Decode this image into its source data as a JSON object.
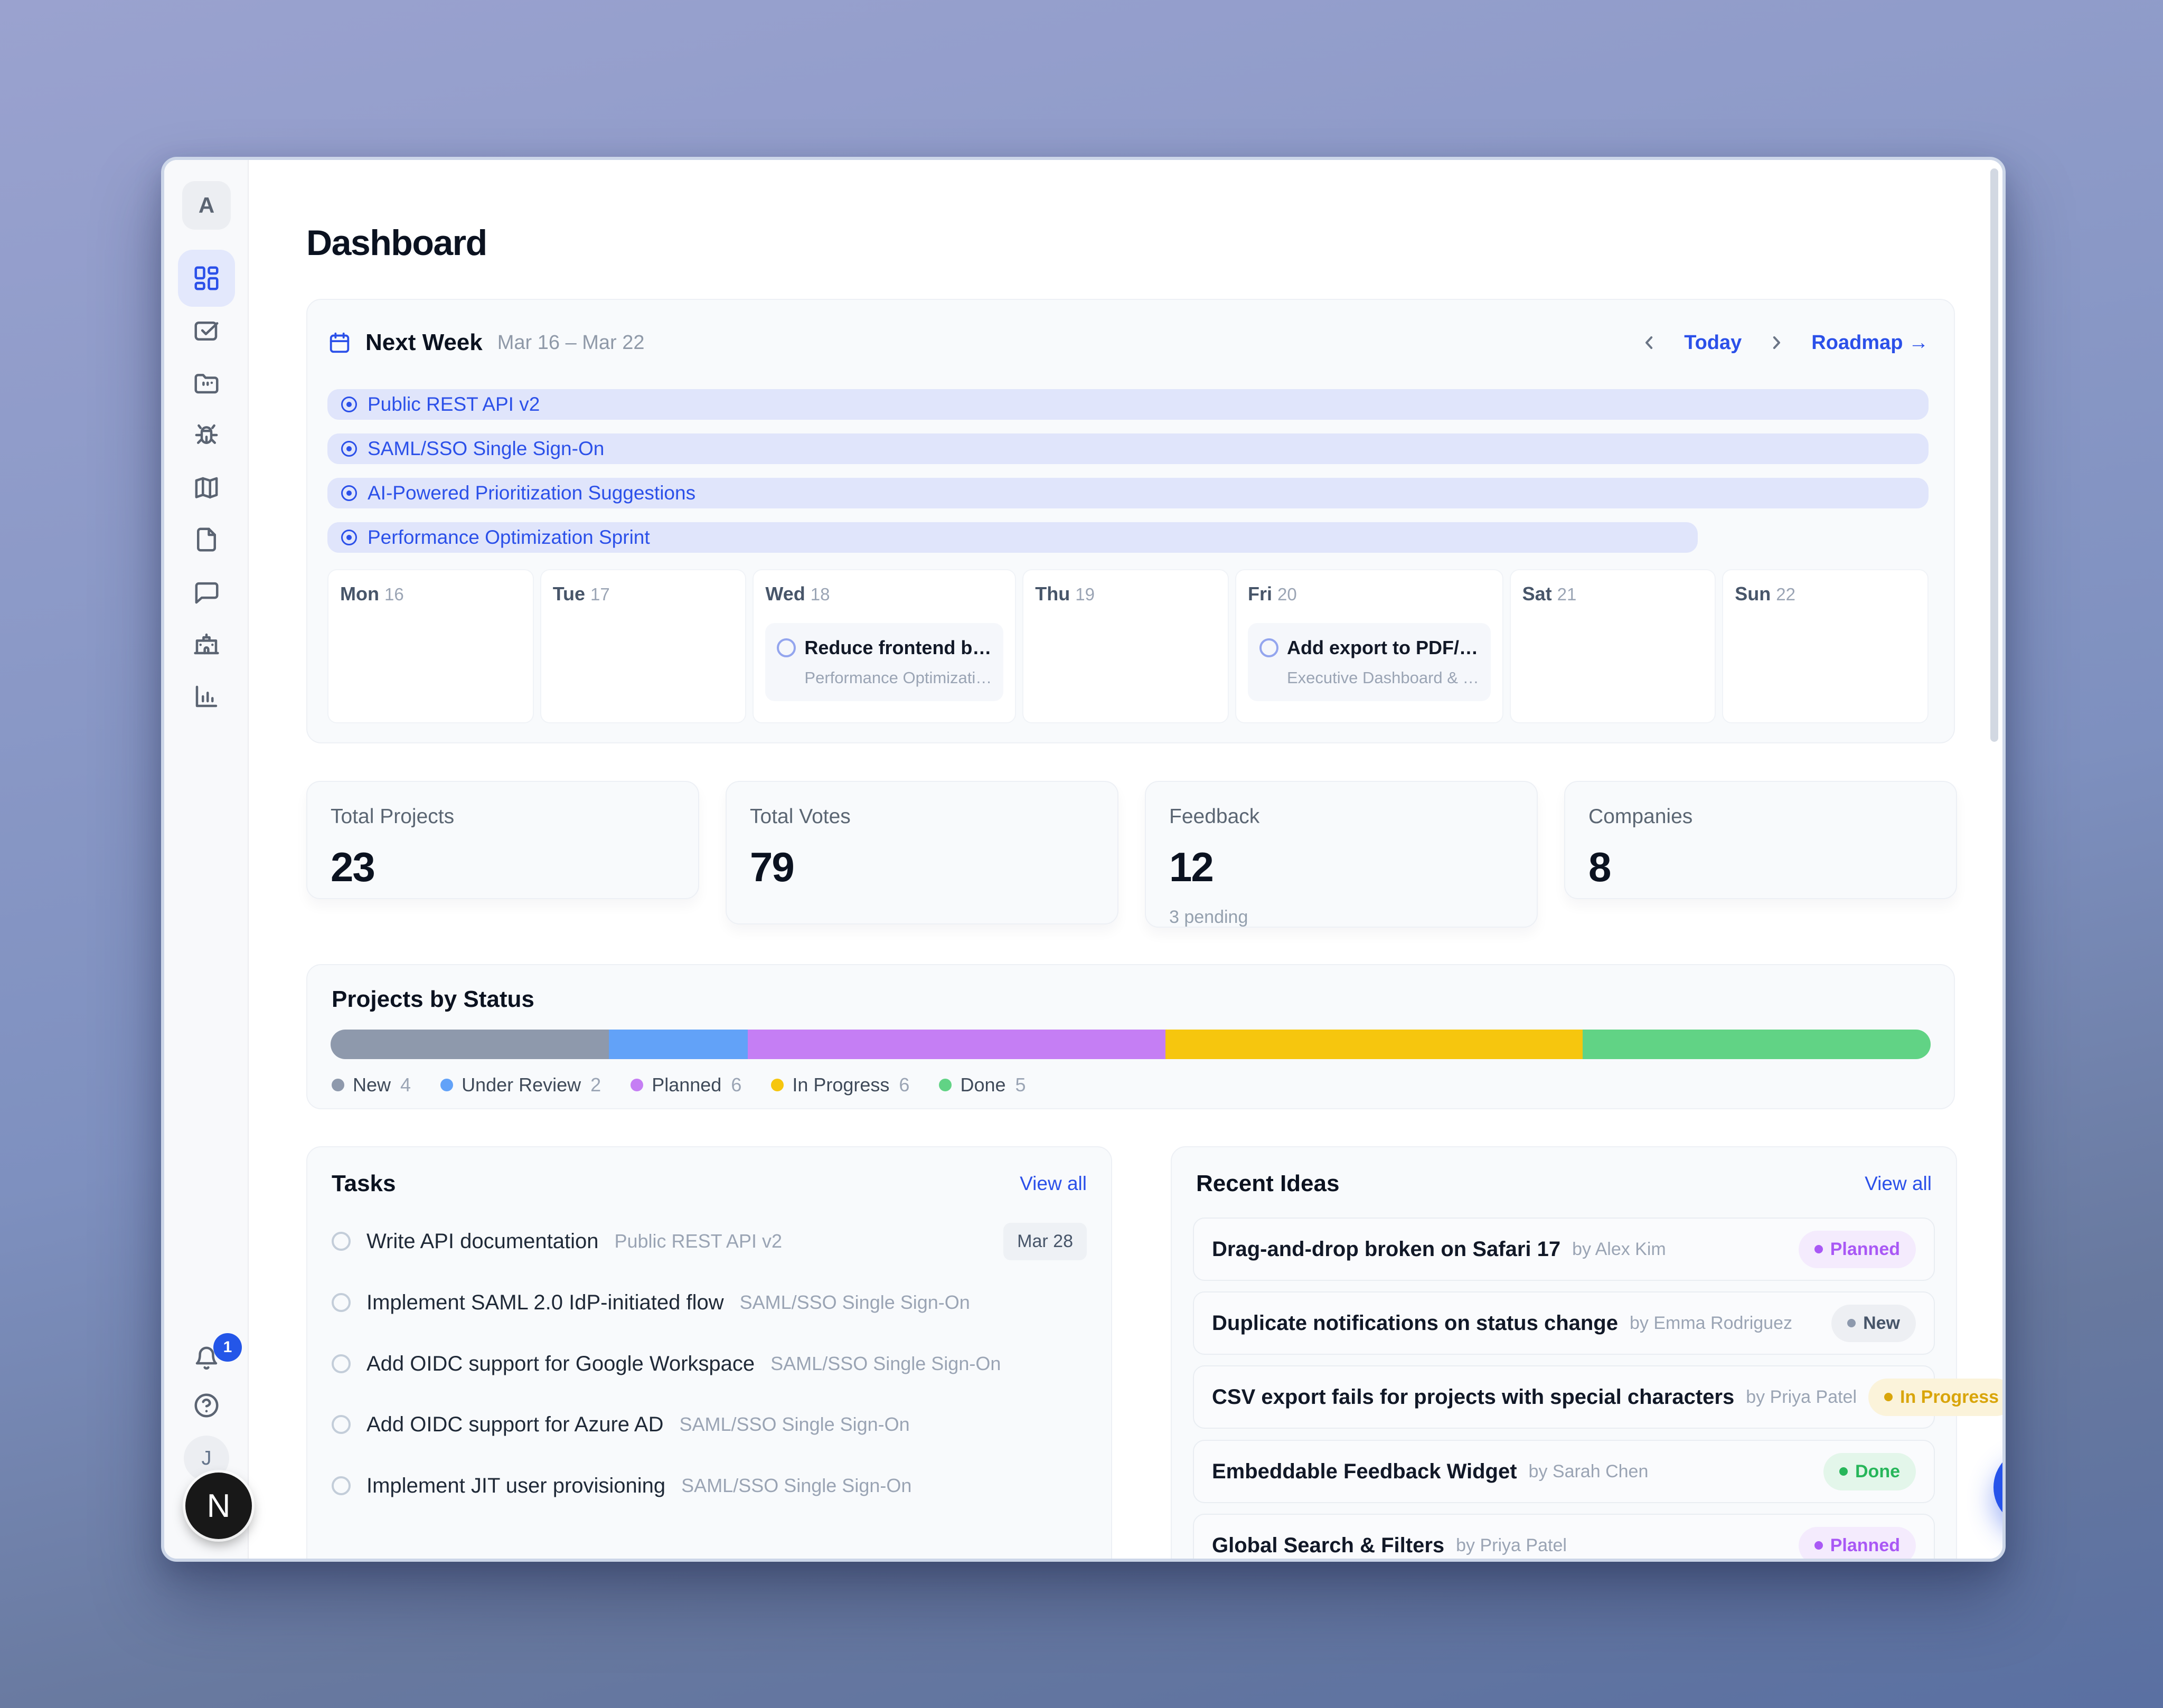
{
  "colors": {
    "accent": "#2b50e9",
    "fab": "#2653ea",
    "bar_bg": "#e0e5fb",
    "status_planned": "#a958f5",
    "status_in_progress": "#d9a50a",
    "status_done": "#27b65a"
  },
  "sidebar": {
    "logo": "A",
    "notification_count": "1",
    "avatar_initial": "J",
    "dev_badge": "N",
    "items": [
      {
        "icon": "layout-dashboard-icon",
        "active": true
      },
      {
        "icon": "check-square-icon"
      },
      {
        "icon": "folder-icon"
      },
      {
        "icon": "bug-icon"
      },
      {
        "icon": "map-icon"
      },
      {
        "icon": "file-icon"
      },
      {
        "icon": "message-icon"
      },
      {
        "icon": "building-icon"
      },
      {
        "icon": "bar-chart-icon"
      }
    ]
  },
  "header": {
    "title": "Dashboard"
  },
  "next_week": {
    "title": "Next Week",
    "date_range": "Mar 16 – Mar 22",
    "today_label": "Today",
    "roadmap_label": "Roadmap →",
    "bars": [
      {
        "label": "Public REST API v2",
        "width_pct": 100
      },
      {
        "label": "SAML/SSO Single Sign-On",
        "width_pct": 100
      },
      {
        "label": "AI-Powered Prioritization Suggestions",
        "width_pct": 100
      },
      {
        "label": "Performance Optimization Sprint",
        "width_pct": 85.6
      }
    ],
    "days": [
      {
        "name": "Mon",
        "num": "16"
      },
      {
        "name": "Tue",
        "num": "17"
      },
      {
        "name": "Wed",
        "num": "18",
        "event": {
          "title": "Reduce frontend b…",
          "subtitle": "Performance Optimizati…"
        }
      },
      {
        "name": "Thu",
        "num": "19"
      },
      {
        "name": "Fri",
        "num": "20",
        "event": {
          "title": "Add export to PDF/…",
          "subtitle": "Executive Dashboard & …"
        }
      },
      {
        "name": "Sat",
        "num": "21"
      },
      {
        "name": "Sun",
        "num": "22"
      }
    ]
  },
  "stats": [
    {
      "label": "Total Projects",
      "value": "23"
    },
    {
      "label": "Total Votes",
      "value": "79"
    },
    {
      "label": "Feedback",
      "value": "12",
      "sub": "3 pending"
    },
    {
      "label": "Companies",
      "value": "8"
    }
  ],
  "status_chart": {
    "type": "bar",
    "title": "Projects by Status",
    "segments": [
      {
        "label": "New",
        "count": 4,
        "color": "#8e99ac"
      },
      {
        "label": "Under Review",
        "count": 2,
        "color": "#62a2f8"
      },
      {
        "label": "Planned",
        "count": 6,
        "color": "#c57ef4"
      },
      {
        "label": "In Progress",
        "count": 6,
        "color": "#f6c60e"
      },
      {
        "label": "Done",
        "count": 5,
        "color": "#61d385"
      }
    ]
  },
  "tasks": {
    "title": "Tasks",
    "view_all": "View all",
    "items": [
      {
        "title": "Write API documentation",
        "project": "Public REST API v2",
        "due": "Mar 28"
      },
      {
        "title": "Implement SAML 2.0 IdP-initiated flow",
        "project": "SAML/SSO Single Sign-On"
      },
      {
        "title": "Add OIDC support for Google Workspace",
        "project": "SAML/SSO Single Sign-On"
      },
      {
        "title": "Add OIDC support for Azure AD",
        "project": "SAML/SSO Single Sign-On"
      },
      {
        "title": "Implement JIT user provisioning",
        "project": "SAML/SSO Single Sign-On"
      }
    ]
  },
  "ideas": {
    "title": "Recent Ideas",
    "view_all": "View all",
    "items": [
      {
        "title": "Drag-and-drop broken on Safari 17",
        "author": "by Alex Kim",
        "status": "Planned",
        "status_key": "planned"
      },
      {
        "title": "Duplicate notifications on status change",
        "author": "by Emma Rodriguez",
        "status": "New",
        "status_key": "new"
      },
      {
        "title": "CSV export fails for projects with special characters",
        "author": "by Priya Patel",
        "status": "In Progress",
        "status_key": "in-progress"
      },
      {
        "title": "Embeddable Feedback Widget",
        "author": "by Sarah Chen",
        "status": "Done",
        "status_key": "done"
      },
      {
        "title": "Global Search & Filters",
        "author": "by Priya Patel",
        "status": "Planned",
        "status_key": "planned"
      }
    ]
  }
}
